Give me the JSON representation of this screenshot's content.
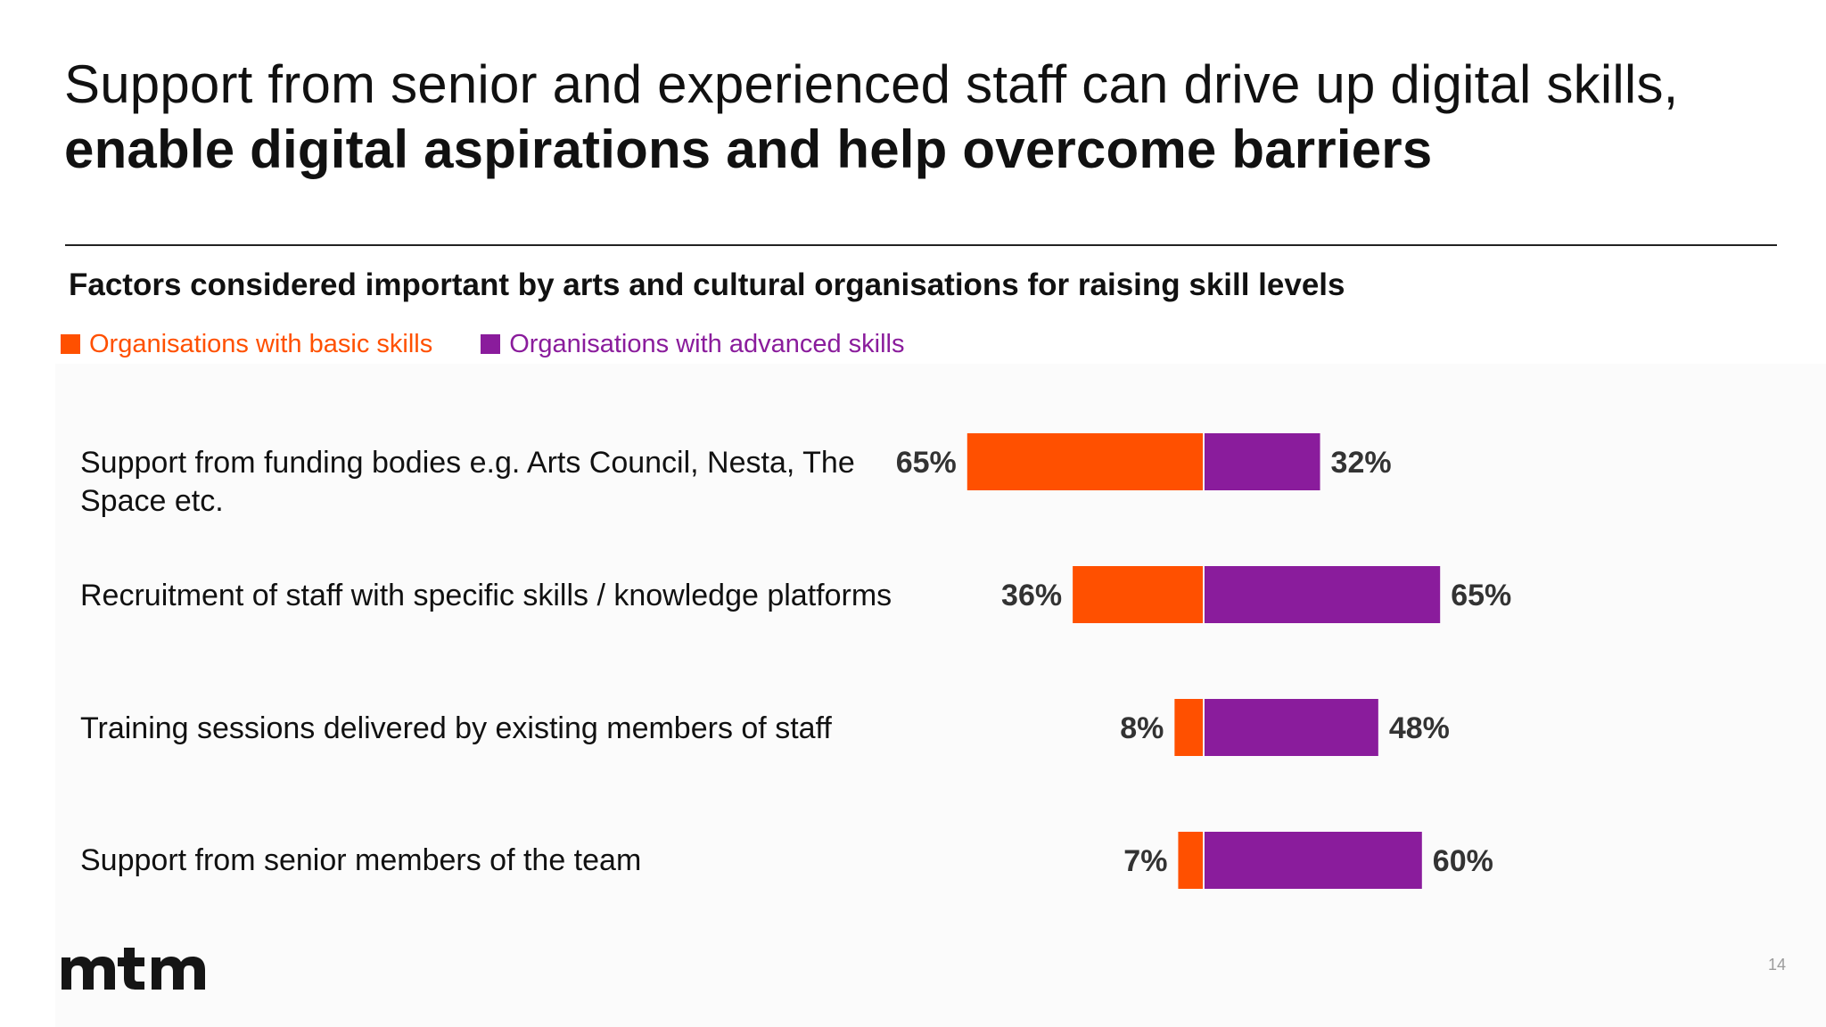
{
  "slide": {
    "title_regular": "Support from senior and experienced staff can drive up digital skills, ",
    "title_bold": "enable digital aspirations and help overcome barriers",
    "page_number": "14",
    "logo_text": "mtm"
  },
  "colors": {
    "basic": "#ff5000",
    "advanced": "#8a1c9c",
    "text": "#111111",
    "value_label": "#333333"
  },
  "chart_data": {
    "type": "bar",
    "title": "Factors considered important by arts and cultural organisations for raising skill levels",
    "categories": [
      "Support from funding bodies e.g. Arts Council, Nesta, The Space etc.",
      "Recruitment of staff with specific skills / knowledge platforms",
      "Training sessions delivered by existing members of staff",
      "Support from senior members of the team"
    ],
    "series": [
      {
        "name": "Organisations with basic skills",
        "values": [
          65,
          36,
          8,
          7
        ],
        "labels": [
          "65%",
          "36%",
          "8%",
          "7%"
        ]
      },
      {
        "name": "Organisations with advanced skills",
        "values": [
          32,
          65,
          48,
          60
        ],
        "labels": [
          "32%",
          "65%",
          "48%",
          "60%"
        ]
      }
    ],
    "legend_position": "top-left",
    "grid": false
  }
}
